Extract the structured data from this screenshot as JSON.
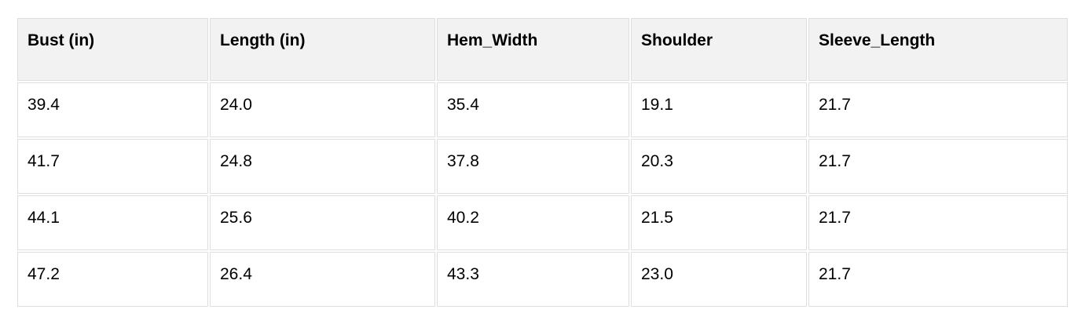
{
  "chart_data": {
    "type": "table",
    "columns": [
      "Bust (in)",
      "Length (in)",
      "Hem_Width",
      "Shoulder",
      "Sleeve_Length"
    ],
    "rows": [
      [
        "39.4",
        "24.0",
        "35.4",
        "19.1",
        "21.7"
      ],
      [
        "41.7",
        "24.8",
        "37.8",
        "20.3",
        "21.7"
      ],
      [
        "44.1",
        "25.6",
        "40.2",
        "21.5",
        "21.7"
      ],
      [
        "47.2",
        "26.4",
        "43.3",
        "23.0",
        "21.7"
      ]
    ],
    "layout": {
      "header_row": true,
      "grid": "separated-cells"
    }
  },
  "colors": {
    "header_background": "#f2f2f2",
    "cell_background": "#ffffff",
    "border": "#dedede",
    "text": "#000000",
    "page_background": "#ffffff"
  }
}
